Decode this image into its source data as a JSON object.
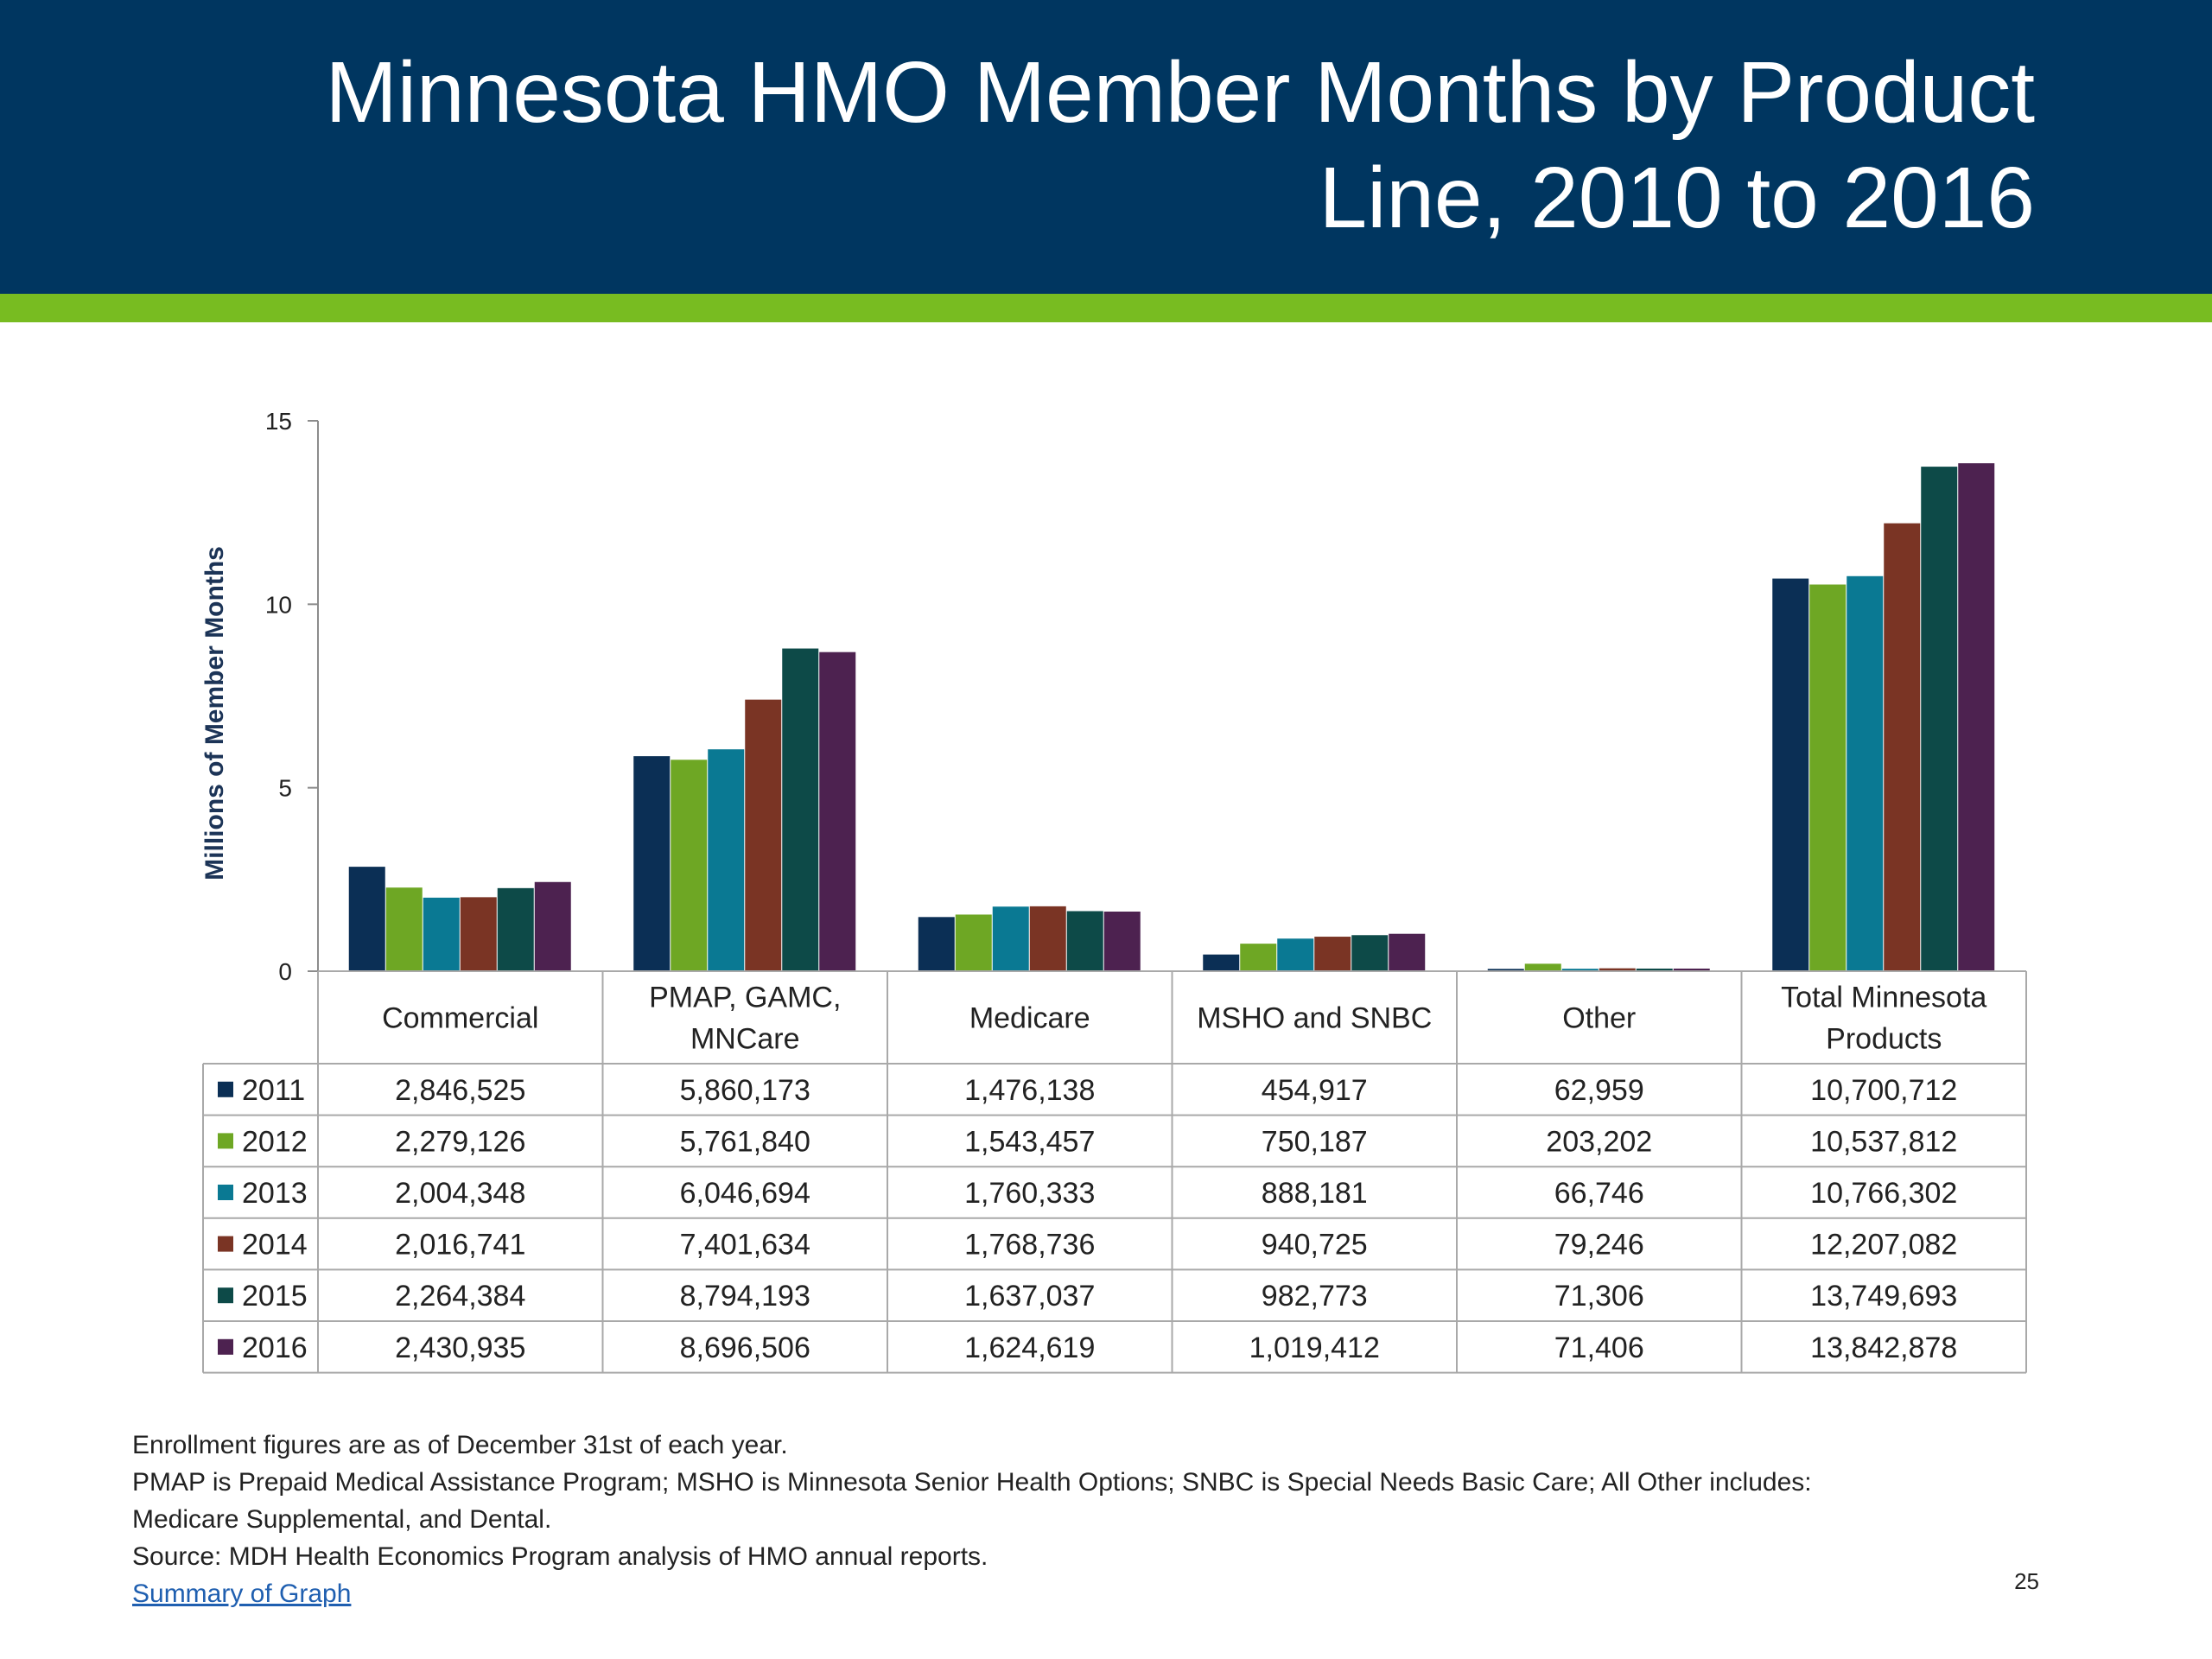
{
  "title": "Minnesota HMO Member Months by Product Line, 2010 to 2016",
  "colors": {
    "header_bg": "#003660",
    "accent_bar": "#78bc21"
  },
  "chart_data": {
    "type": "bar",
    "ylabel": "Millions of Member Months",
    "ylim": [
      0,
      15
    ],
    "yticks": [
      0,
      5,
      10,
      15
    ],
    "categories": [
      "Commercial",
      "PMAP, GAMC, MNCare",
      "Medicare",
      "MSHO and SNBC",
      "Other",
      "Total Minnesota Products"
    ],
    "category_lines": [
      [
        "Commercial"
      ],
      [
        "PMAP, GAMC,",
        "MNCare"
      ],
      [
        "Medicare"
      ],
      [
        "MSHO and SNBC"
      ],
      [
        "Other"
      ],
      [
        "Total Minnesota",
        "Products"
      ]
    ],
    "series": [
      {
        "name": "2011",
        "color": "#0b2f55",
        "values": [
          2846525,
          5860173,
          1476138,
          454917,
          62959,
          10700712
        ],
        "labels": [
          "2,846,525",
          "5,860,173",
          "1,476,138",
          "454,917",
          "62,959",
          "10,700,712"
        ]
      },
      {
        "name": "2012",
        "color": "#6ea724",
        "values": [
          2279126,
          5761840,
          1543457,
          750187,
          203202,
          10537812
        ],
        "labels": [
          "2,279,126",
          "5,761,840",
          "1,543,457",
          "750,187",
          "203,202",
          "10,537,812"
        ]
      },
      {
        "name": "2013",
        "color": "#0a7993",
        "values": [
          2004348,
          6046694,
          1760333,
          888181,
          66746,
          10766302
        ],
        "labels": [
          "2,004,348",
          "6,046,694",
          "1,760,333",
          "888,181",
          "66,746",
          "10,766,302"
        ]
      },
      {
        "name": "2014",
        "color": "#7a3424",
        "values": [
          2016741,
          7401634,
          1768736,
          940725,
          79246,
          12207082
        ],
        "labels": [
          "2,016,741",
          "7,401,634",
          "1,768,736",
          "940,725",
          "79,246",
          "12,207,082"
        ]
      },
      {
        "name": "2015",
        "color": "#0d4a48",
        "values": [
          2264384,
          8794193,
          1637037,
          982773,
          71306,
          13749693
        ],
        "labels": [
          "2,264,384",
          "8,794,193",
          "1,637,037",
          "982,773",
          "71,306",
          "13,749,693"
        ]
      },
      {
        "name": "2016",
        "color": "#4d2250",
        "values": [
          2430935,
          8696506,
          1624619,
          1019412,
          71406,
          13842878
        ],
        "labels": [
          "2,430,935",
          "8,696,506",
          "1,624,619",
          "1,019,412",
          "71,406",
          "13,842,878"
        ]
      }
    ]
  },
  "notes": [
    "Enrollment figures are as of December 31st of each year.",
    "PMAP is Prepaid Medical Assistance Program; MSHO is Minnesota Senior Health Options; SNBC is Special Needs Basic Care; All Other includes:",
    "Medicare Supplemental, and Dental.",
    "Source: MDH Health Economics Program analysis of HMO annual reports."
  ],
  "link_text": "Summary of Graph",
  "page_number": "25"
}
